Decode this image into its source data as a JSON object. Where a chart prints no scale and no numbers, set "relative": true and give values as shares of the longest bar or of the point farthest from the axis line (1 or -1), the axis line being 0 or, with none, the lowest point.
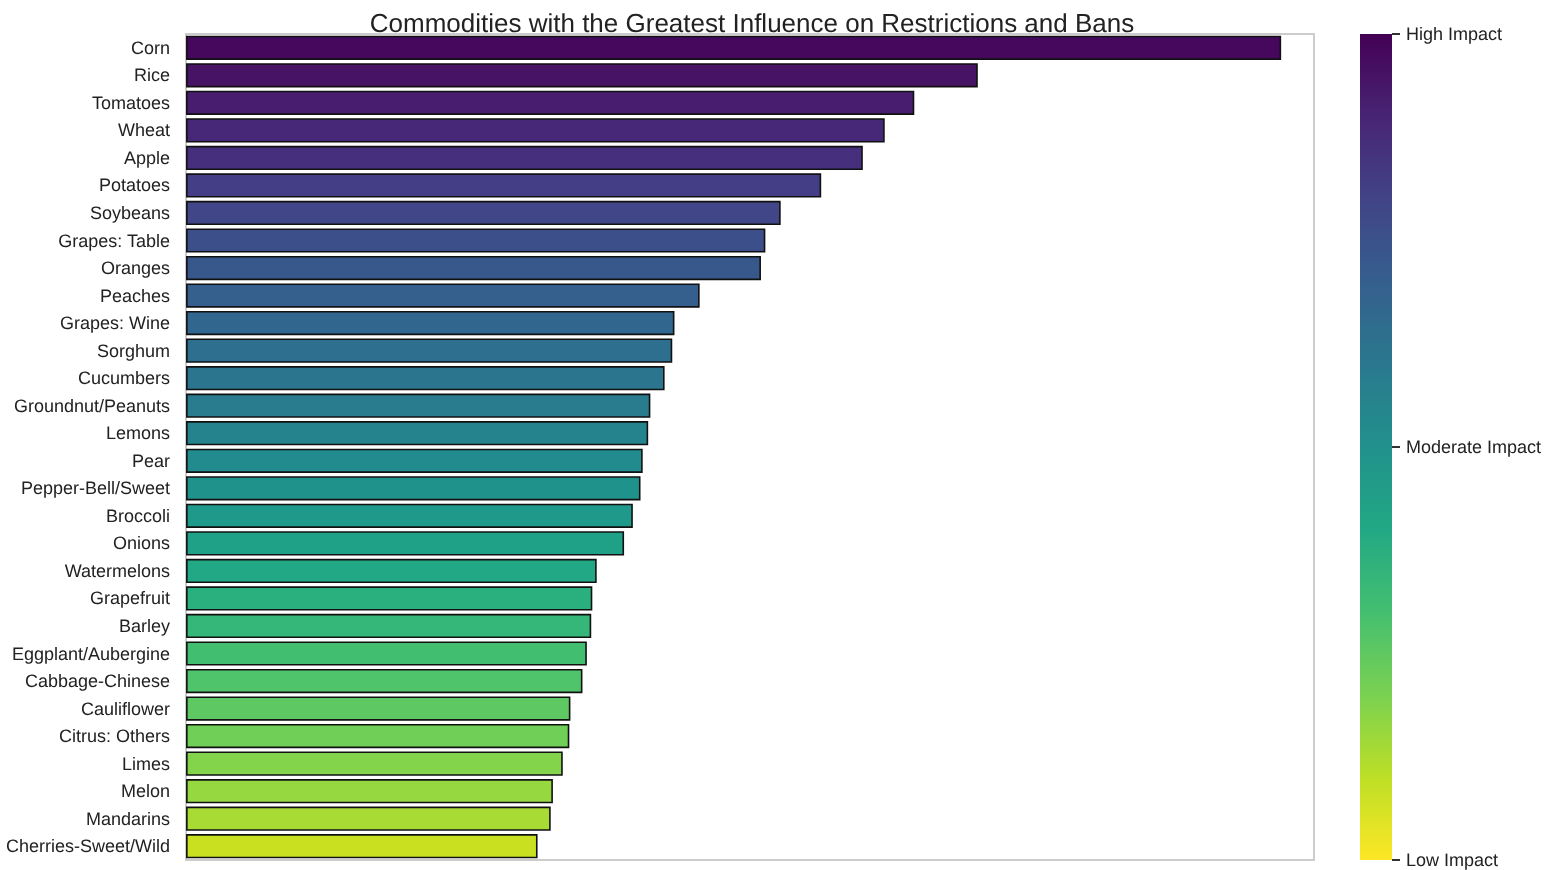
{
  "chart_data": {
    "type": "bar",
    "orientation": "horizontal",
    "relative": true,
    "title": "Commodities with the Greatest Influence on Restrictions and Bans",
    "categories": [
      "Corn",
      "Rice",
      "Tomatoes",
      "Wheat",
      "Apple",
      "Potatoes",
      "Soybeans",
      "Grapes: Table",
      "Oranges",
      "Peaches",
      "Grapes: Wine",
      "Sorghum",
      "Cucumbers",
      "Groundnut/Peanuts",
      "Lemons",
      "Pear",
      "Pepper-Bell/Sweet",
      "Broccoli",
      "Onions",
      "Watermelons",
      "Grapefruit",
      "Barley",
      "Eggplant/Aubergine",
      "Cabbage-Chinese",
      "Cauliflower",
      "Citrus: Others",
      "Limes",
      "Melon",
      "Mandarins",
      "Cherries-Sweet/Wild"
    ],
    "values": [
      1,
      0.723,
      0.665,
      0.638,
      0.618,
      0.58,
      0.543,
      0.529,
      0.525,
      0.469,
      0.446,
      0.444,
      0.437,
      0.424,
      0.422,
      0.417,
      0.415,
      0.408,
      0.4,
      0.375,
      0.371,
      0.37,
      0.366,
      0.362,
      0.351,
      0.35,
      0.344,
      0.335,
      0.333,
      0.321
    ],
    "colors": [
      "#46085c",
      "#471365",
      "#481d6f",
      "#472878",
      "#46307e",
      "#433e85",
      "#404688",
      "#3c4f8a",
      "#38588c",
      "#355f8d",
      "#31668e",
      "#2e6e8e",
      "#2b758e",
      "#297b8e",
      "#25838e",
      "#228b8d",
      "#20928c",
      "#1f998a",
      "#1fa188",
      "#22a884",
      "#2ab07f",
      "#35b779",
      "#42be71",
      "#50c46a",
      "#5ec962",
      "#70cf57",
      "#84d44b",
      "#95d840",
      "#a8db34",
      "#c8e020"
    ],
    "clim": [
      0,
      1
    ],
    "cticks": [
      {
        "value": 0,
        "label": "Low Impact"
      },
      {
        "value": 0.5,
        "label": "Moderate Impact"
      },
      {
        "value": 1,
        "label": "High Impact"
      }
    ]
  }
}
